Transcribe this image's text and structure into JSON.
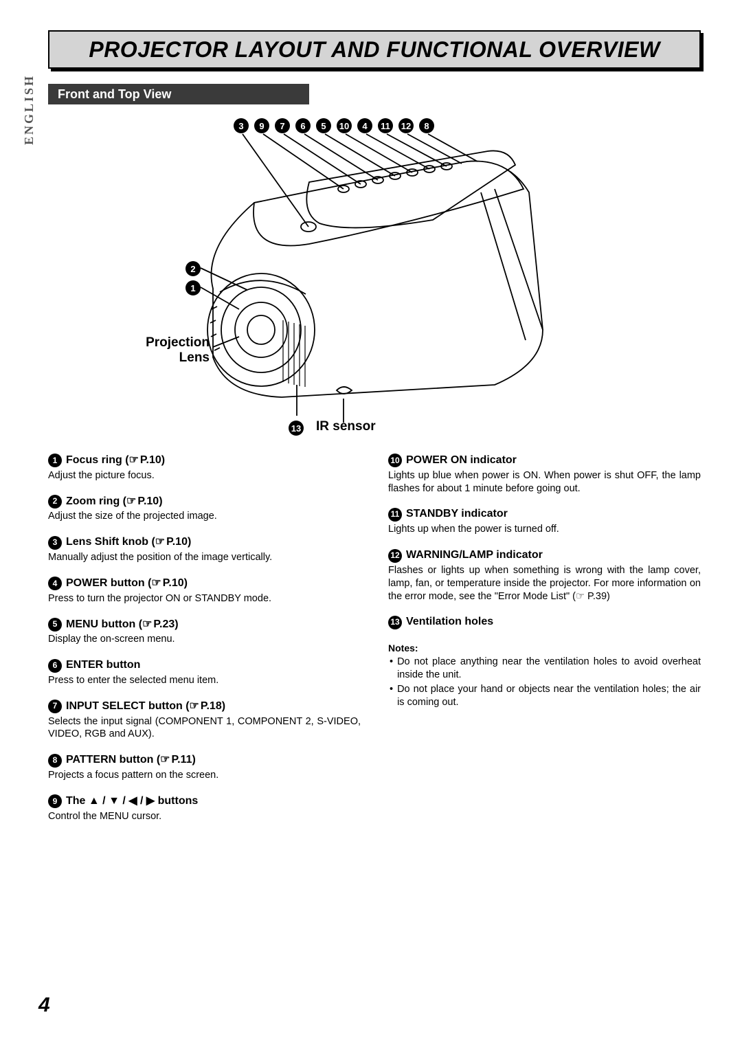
{
  "page_number": "4",
  "language_tab": "ENGLISH",
  "title": "PROJECTOR LAYOUT AND FUNCTIONAL OVERVIEW",
  "subtitle": "Front and Top View",
  "top_row_numbers": [
    "3",
    "9",
    "7",
    "6",
    "5",
    "10",
    "4",
    "11",
    "12",
    "8"
  ],
  "diagram_labels": {
    "label_2": "2",
    "label_1": "1",
    "projection_line1": "Projection",
    "projection_line2": "Lens",
    "label_13": "13",
    "ir_sensor": "IR sensor"
  },
  "left_items": [
    {
      "num": "1",
      "title": "Focus ring (",
      "page": "P.10",
      "title_end": ")",
      "desc": "Adjust the picture focus."
    },
    {
      "num": "2",
      "title": "Zoom ring (",
      "page": "P.10",
      "title_end": ")",
      "desc": "Adjust the size of the projected image."
    },
    {
      "num": "3",
      "title": "Lens Shift knob (",
      "page": "P.10",
      "title_end": ")",
      "desc": "Manually adjust the position of the image vertically."
    },
    {
      "num": "4",
      "title": "POWER button (",
      "page": "P.10",
      "title_end": ")",
      "desc": "Press to turn the projector ON or STANDBY mode."
    },
    {
      "num": "5",
      "title": "MENU button (",
      "page": "P.23",
      "title_end": ")",
      "desc": "Display the on-screen menu."
    },
    {
      "num": "6",
      "title": "ENTER button",
      "page": "",
      "title_end": "",
      "desc": "Press to enter the selected menu item."
    },
    {
      "num": "7",
      "title": "INPUT SELECT button (",
      "page": "P.18",
      "title_end": ")",
      "desc": "Selects the input signal (COMPONENT 1, COMPONENT 2, S-VIDEO, VIDEO, RGB and AUX)."
    },
    {
      "num": "8",
      "title": "PATTERN button (",
      "page": "P.11",
      "title_end": ")",
      "desc": "Projects a focus pattern on the screen."
    },
    {
      "num": "9",
      "title": "The ▲ / ▼ / ◀ / ▶ buttons",
      "page": "",
      "title_end": "",
      "desc": "Control the MENU cursor."
    }
  ],
  "right_items": [
    {
      "num": "10",
      "title": "POWER ON indicator",
      "page": "",
      "title_end": "",
      "desc": "Lights up blue when power is ON. When power is shut OFF, the lamp flashes for about 1 minute before going out."
    },
    {
      "num": "11",
      "title": "STANDBY indicator",
      "page": "",
      "title_end": "",
      "desc": "Lights up when the power is turned off."
    },
    {
      "num": "12",
      "title": "WARNING/LAMP indicator",
      "page": "",
      "title_end": "",
      "desc": "Flashes or lights up when something is wrong with the lamp cover, lamp, fan, or temperature inside the projector.\nFor more information on the error mode, see the \"Error Mode List\" (☞ P.39)"
    },
    {
      "num": "13",
      "title": "Ventilation holes",
      "page": "",
      "title_end": "",
      "desc": ""
    }
  ],
  "notes_heading": "Notes:",
  "notes": [
    "Do not place anything near the ventilation holes to avoid overheat inside the unit.",
    "Do not place your hand or objects near the ventilation holes; the air is coming out."
  ]
}
